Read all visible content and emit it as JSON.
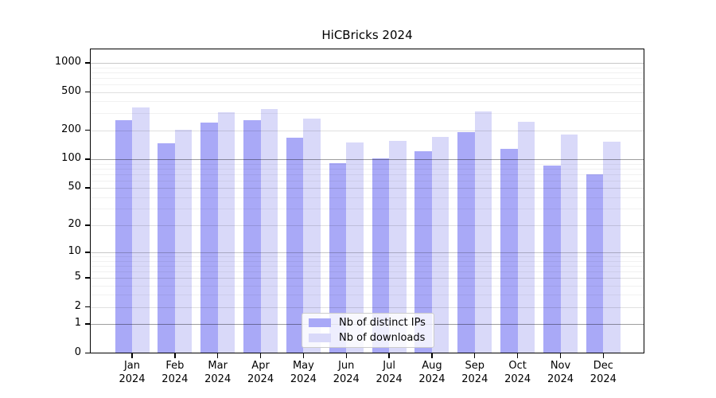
{
  "chart_data": {
    "type": "bar",
    "title": "HiCBricks 2024",
    "categories": [
      "Jan",
      "Feb",
      "Mar",
      "Apr",
      "May",
      "Jun",
      "Jul",
      "Aug",
      "Sep",
      "Oct",
      "Nov",
      "Dec"
    ],
    "year_label": "2024",
    "series": [
      {
        "name": "Nb of distinct IPs",
        "color": "#a9a9f7",
        "values": [
          256,
          149,
          244,
          256,
          169,
          91,
          103,
          122,
          192,
          129,
          86,
          70
        ]
      },
      {
        "name": "Nb of downloads",
        "color": "#d9d9f9",
        "values": [
          350,
          205,
          310,
          335,
          268,
          150,
          158,
          174,
          320,
          248,
          184,
          153
        ]
      }
    ],
    "y_ticks": [
      1000,
      500,
      200,
      100,
      50,
      20,
      10,
      5,
      2,
      1,
      0
    ],
    "y_scale": "log1p",
    "ylim": [
      0,
      1400
    ],
    "xlabel": "",
    "ylabel": "",
    "grid": "on",
    "legend_position": "bottom-center"
  }
}
